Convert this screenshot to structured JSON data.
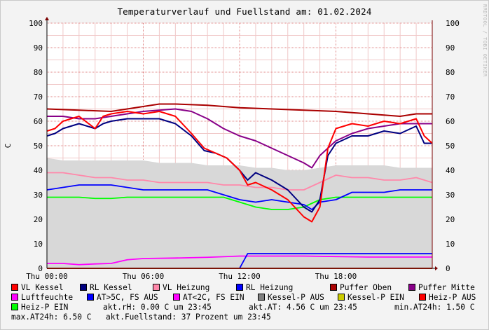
{
  "title": "Temperaturverlauf und Fuellstand am: 01.02.2024",
  "watermark": "RRDTOOL / TOBI OETIKER",
  "chart_data": {
    "type": "line",
    "ylabel": "C",
    "ylim": [
      0,
      100
    ],
    "yticks": [
      0,
      10,
      20,
      30,
      40,
      50,
      60,
      70,
      80,
      90,
      100
    ],
    "x_range_hours": [
      0,
      24
    ],
    "x_ticks": [
      {
        "hour": 0,
        "label": "Thu 00:00"
      },
      {
        "hour": 6,
        "label": "Thu 06:00"
      },
      {
        "hour": 12,
        "label": "Thu 12:00"
      },
      {
        "hour": 18,
        "label": "Thu 18:00"
      }
    ],
    "grid": true,
    "legend_position": "bottom",
    "series": [
      {
        "name": "VL Kessel",
        "color": "#ff0000",
        "x": [
          0,
          0.5,
          1,
          2,
          3,
          3.5,
          4,
          5,
          6,
          7,
          8,
          9,
          9.8,
          10.5,
          11.2,
          12,
          12.5,
          13,
          14,
          15,
          16,
          16.5,
          17,
          17.5,
          18,
          19,
          20,
          21,
          22,
          23,
          23.5,
          24
        ],
        "y": [
          56,
          57,
          60,
          62,
          57,
          62,
          63,
          64,
          63,
          64,
          62,
          55,
          49,
          47,
          45,
          40,
          34,
          35,
          32,
          28,
          21,
          19,
          25,
          49,
          57,
          59,
          58,
          60,
          59,
          61,
          54,
          51
        ]
      },
      {
        "name": "RL Kessel",
        "color": "#000080",
        "x": [
          0,
          0.5,
          1,
          2,
          3,
          3.5,
          4,
          5,
          6,
          7,
          8,
          9,
          9.8,
          10.5,
          11.2,
          12,
          12.5,
          13,
          14,
          15,
          16,
          16.5,
          17,
          17.5,
          18,
          19,
          20,
          21,
          22,
          23,
          23.5,
          24
        ],
        "y": [
          54,
          55,
          57,
          59,
          57,
          59,
          60,
          61,
          61,
          61,
          59,
          54,
          48,
          47,
          45,
          40,
          36,
          39,
          36,
          32,
          25,
          23,
          28,
          46,
          51,
          54,
          54,
          56,
          55,
          58,
          51,
          51
        ]
      },
      {
        "name": "VL Heizung",
        "color": "#ff88aa",
        "x": [
          0,
          1,
          2,
          3,
          4,
          5,
          6,
          7,
          8,
          9,
          10,
          11,
          12,
          13,
          14,
          15,
          16,
          17,
          18,
          19,
          20,
          21,
          22,
          23,
          24
        ],
        "y": [
          39,
          39,
          38,
          37,
          37,
          36,
          36,
          35,
          35,
          35,
          35,
          34,
          34,
          33,
          33,
          32,
          32,
          35,
          38,
          37,
          37,
          36,
          36,
          37,
          35
        ]
      },
      {
        "name": "RL Heizung",
        "color": "#0000ff",
        "x": [
          0,
          1,
          2,
          3,
          4,
          5,
          6,
          7,
          8,
          9,
          10,
          11,
          12,
          13,
          14,
          15,
          16,
          16.5,
          17,
          18,
          19,
          20,
          21,
          22,
          23,
          24
        ],
        "y": [
          32,
          33,
          34,
          34,
          34,
          33,
          32,
          32,
          32,
          32,
          32,
          30,
          28,
          27,
          28,
          27,
          26,
          24,
          27,
          28,
          31,
          31,
          31,
          32,
          32,
          32
        ]
      },
      {
        "name": "Puffer Oben",
        "color": "#aa0000",
        "x": [
          0,
          2,
          4,
          6,
          7,
          8,
          10,
          12,
          14,
          16,
          18,
          20,
          22,
          23,
          24
        ],
        "y": [
          65,
          64.5,
          64,
          66,
          67,
          67,
          66.5,
          65.5,
          65,
          64.5,
          64,
          63,
          62,
          63,
          63
        ]
      },
      {
        "name": "Puffer Mitte",
        "color": "#880088",
        "x": [
          0,
          1,
          2,
          3,
          4,
          6,
          8,
          9,
          10,
          11,
          12,
          13,
          14,
          15,
          16,
          16.5,
          17,
          18,
          19,
          20,
          21,
          22,
          23,
          24
        ],
        "y": [
          62,
          62,
          61,
          61,
          62,
          64,
          65,
          64,
          61,
          57,
          54,
          52,
          49,
          46,
          43,
          41,
          46,
          52,
          55,
          57,
          58,
          59,
          59,
          59
        ]
      },
      {
        "name": "Luftfeuchte",
        "color": "#ff00ff",
        "x": [
          0,
          1,
          2,
          3,
          4,
          5,
          6,
          8,
          10,
          12,
          14,
          16,
          18,
          20,
          22,
          24
        ],
        "y": [
          2,
          2,
          1.5,
          1.8,
          2,
          3.5,
          4,
          4.2,
          4.5,
          5,
          5,
          5,
          4.8,
          4.6,
          4.6,
          4.6
        ]
      },
      {
        "name": "AT>5C, FS AUS",
        "color": "#0000ff",
        "x": [
          0,
          4,
          8,
          12,
          12.5,
          13,
          13.5,
          14,
          14.5,
          15,
          15.5,
          16,
          24
        ],
        "y": [
          0,
          0,
          0,
          0,
          6,
          6,
          6,
          6,
          6,
          6,
          6,
          6,
          6
        ]
      },
      {
        "name": "AT<2C, FS EIN",
        "color": "#ff00ff",
        "x": [
          0,
          12,
          12.5,
          13,
          16,
          24
        ],
        "y": [
          0,
          0,
          0,
          0,
          0,
          0
        ]
      },
      {
        "name": "Kessel-P AUS",
        "color": "#808080",
        "x": [
          0,
          1,
          2,
          3,
          4,
          5,
          6,
          7,
          8,
          9,
          10,
          11,
          12,
          13,
          14,
          15,
          16,
          17,
          18,
          19,
          20,
          21,
          22,
          23,
          24
        ],
        "y": [
          45,
          44,
          44,
          44,
          44,
          44,
          44,
          43,
          43,
          43,
          42,
          42,
          42,
          41,
          41,
          40,
          40,
          41,
          42,
          42,
          42,
          42,
          41,
          41,
          41
        ]
      },
      {
        "name": "Kessel-P EIN",
        "color": "#cccc00",
        "x": [
          0,
          24
        ],
        "y": [
          0,
          0
        ]
      },
      {
        "name": "Heiz-P AUS",
        "color": "#ff0000",
        "x": [
          0,
          24
        ],
        "y": [
          0,
          0
        ]
      },
      {
        "name": "Heiz-P EIN",
        "color": "#00ff00",
        "x": [
          0,
          1,
          2,
          3,
          4,
          5,
          6,
          7,
          8,
          9,
          10,
          11,
          12,
          13,
          14,
          15,
          16,
          17,
          18,
          19,
          20,
          21,
          22,
          23,
          24
        ],
        "y": [
          29,
          29,
          29,
          28.5,
          28.5,
          29,
          29,
          29,
          29,
          29,
          29,
          29,
          27,
          25,
          24,
          24,
          25,
          28,
          29,
          29,
          29,
          29,
          29,
          29,
          29
        ]
      }
    ]
  },
  "legend": {
    "items": [
      {
        "label": "VL Kessel",
        "color": "#ff0000"
      },
      {
        "label": "RL Kessel",
        "color": "#000080"
      },
      {
        "label": "VL Heizung",
        "color": "#ff88aa"
      },
      {
        "label": "RL Heizung",
        "color": "#0000ff"
      },
      {
        "label": "Puffer Oben",
        "color": "#aa0000"
      },
      {
        "label": "Puffer Mitte",
        "color": "#880088"
      },
      {
        "label": "Luftfeuchte",
        "color": "#ff00ff"
      },
      {
        "label": "AT>5C, FS AUS",
        "color": "#0000ff"
      },
      {
        "label": "AT<2C, FS EIN",
        "color": "#ff00ff"
      },
      {
        "label": "Kessel-P AUS",
        "color": "#808080"
      },
      {
        "label": "Kessel-P EIN",
        "color": "#cccc00"
      },
      {
        "label": "Heiz-P AUS",
        "color": "#ff0000"
      },
      {
        "label": "Heiz-P EIN",
        "color": "#00ff00"
      }
    ],
    "stats": [
      "akt.rH: 0.00 C um 23:45",
      "akt.AT: 4.56 C um 23:45",
      "min.AT24h: 1.50 C",
      "max.AT24h: 6.50 C",
      "akt.Fuellstand:   37 Prozent um 23:45"
    ]
  }
}
